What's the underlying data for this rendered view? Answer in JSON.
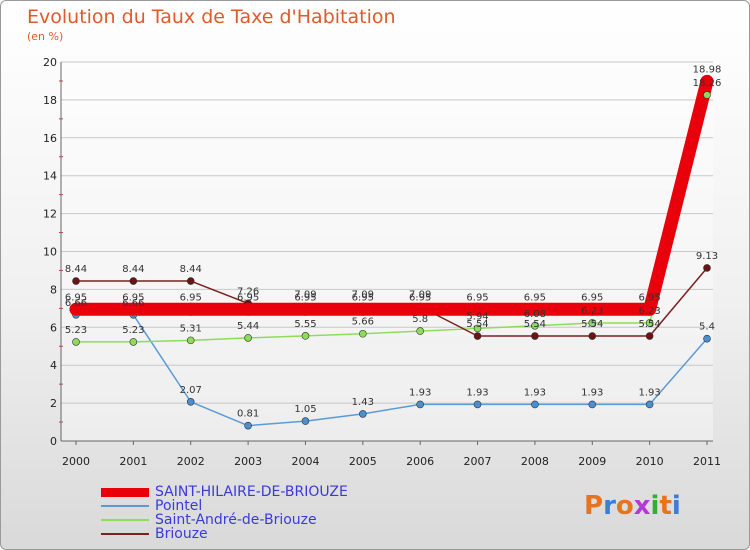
{
  "title": "Evolution du Taux de Taxe d'Habitation",
  "subtitle": "(en %)",
  "logo": "Proxiti",
  "chart_data": {
    "type": "line",
    "title": "Evolution du Taux de Taxe d'Habitation",
    "ylabel": "(en %)",
    "xlabel": "",
    "ylim": [
      0,
      20
    ],
    "yticks": [
      "0",
      "2",
      "4",
      "6",
      "8",
      "10",
      "12",
      "14",
      "16",
      "18",
      "20"
    ],
    "categories": [
      "2000",
      "2001",
      "2002",
      "2003",
      "2004",
      "2005",
      "2006",
      "2007",
      "2008",
      "2009",
      "2010",
      "2011"
    ],
    "series": [
      {
        "name": "SAINT-HILAIRE-DE-BRIOUZE",
        "color": "#e8000b",
        "values": [
          6.95,
          6.95,
          6.95,
          6.95,
          6.95,
          6.95,
          6.95,
          6.95,
          6.95,
          6.95,
          6.95,
          18.98
        ],
        "labels": [
          "6.95",
          "6.95",
          "6.95",
          "6.95",
          "6.95",
          "6.95",
          "6.95",
          "6.95",
          "6.95",
          "6.95",
          "6.95",
          "18.98"
        ]
      },
      {
        "name": "Pointel",
        "color": "#5b9bd5",
        "values": [
          6.66,
          6.66,
          2.07,
          0.81,
          1.05,
          1.43,
          1.93,
          1.93,
          1.93,
          1.93,
          1.93,
          5.4
        ],
        "labels": [
          "6.66",
          "6.66",
          "2.07",
          "0.81",
          "1.05",
          "1.43",
          "1.93",
          "1.93",
          "1.93",
          "1.93",
          "1.93",
          "5.4"
        ]
      },
      {
        "name": "Saint-André-de-Briouze",
        "color": "#8fdc5a",
        "values": [
          5.23,
          5.23,
          5.31,
          5.44,
          5.55,
          5.66,
          5.8,
          5.94,
          6.08,
          6.23,
          6.23,
          18.26
        ],
        "labels": [
          "5.23",
          "5.23",
          "5.31",
          "5.44",
          "5.55",
          "5.66",
          "5.8",
          "5.94",
          "6.08",
          "6.23",
          "6.23",
          "18.26"
        ]
      },
      {
        "name": "Briouze",
        "color": "#7b1f1f",
        "values": [
          8.44,
          8.44,
          8.44,
          7.26,
          7.09,
          7.09,
          7.09,
          5.54,
          5.54,
          5.54,
          5.54,
          9.13
        ],
        "labels": [
          "8.44",
          "8.44",
          "8.44",
          "7.26",
          "7.09",
          "7.09",
          "7.09",
          "5.54",
          "5.54",
          "5.54",
          "5.54",
          "9.13"
        ]
      }
    ]
  }
}
